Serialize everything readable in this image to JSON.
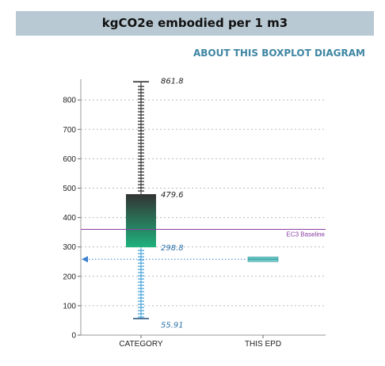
{
  "header": {
    "title": "kgCO2e embodied per 1 m3"
  },
  "about_link": {
    "label": "ABOUT THIS BOXPLOT DIAGRAM"
  },
  "colors": {
    "header_bg": "#b9c9d3",
    "link": "#3f86a3",
    "box_top": "#333333",
    "box_bottom": "#1fb27d",
    "upper_whisker": "#222222",
    "lower_whisker": "#3f9fd8",
    "baseline": "#8a3fa3",
    "epd_marker": "#5fc7c7",
    "epd_arrow": "#3a7fcf",
    "grid": "#bbbbbb"
  },
  "chart_data": {
    "type": "boxplot",
    "title": "kgCO2e embodied per 1 m3",
    "categories": [
      "CATEGORY",
      "THIS EPD"
    ],
    "ylim": [
      0,
      860
    ],
    "yticks": [
      0,
      100,
      200,
      300,
      400,
      500,
      600,
      700,
      800
    ],
    "grid": true,
    "box": {
      "category": "CATEGORY",
      "max": 861.8,
      "q3": 479.6,
      "q1": 298.8,
      "min": 55.91,
      "labels": {
        "max": "861.8",
        "q3": "479.6",
        "q1": "298.8",
        "min": "55.91"
      }
    },
    "baseline": {
      "value": 360,
      "label": "EC3 Baseline"
    },
    "epd": {
      "category": "THIS EPD",
      "value": 258
    }
  }
}
